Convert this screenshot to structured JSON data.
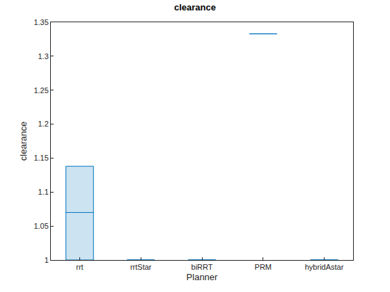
{
  "chart_data": {
    "type": "box",
    "title": "clearance",
    "x_label": "Planner",
    "y_label": "clearance",
    "categories": [
      "rrt",
      "rrtStar",
      "biRRT",
      "PRM",
      "hybridAstar"
    ],
    "min": [
      1,
      1,
      1,
      1.333,
      1
    ],
    "q1": [
      1,
      1,
      1,
      1.333,
      1
    ],
    "median": [
      1.07,
      1,
      1,
      1.333,
      1
    ],
    "q3": [
      1.138,
      1,
      1,
      1.333,
      1
    ],
    "max": [
      1.138,
      1,
      1,
      1.333,
      1
    ],
    "color": "#0072bd",
    "ylim": [
      1,
      1.35
    ],
    "yticks": [
      1,
      1.05,
      1.1,
      1.15,
      1.2,
      1.25,
      1.3,
      1.35
    ],
    "grid": false
  }
}
